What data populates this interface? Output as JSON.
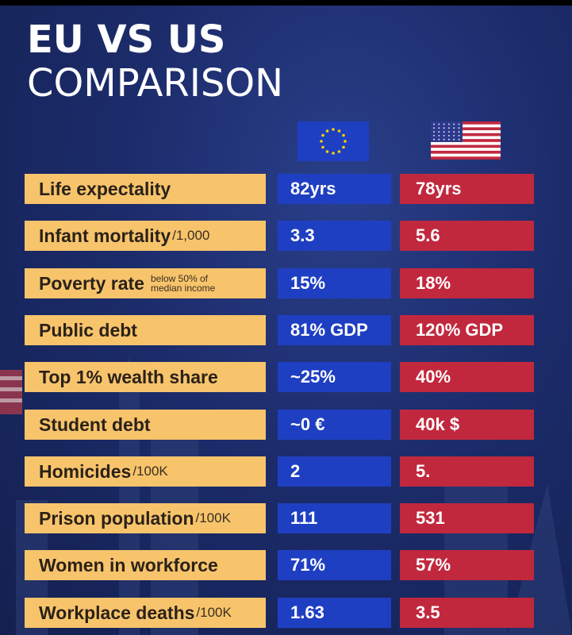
{
  "title": {
    "line1": "EU VS US",
    "line2": "COMPARISON"
  },
  "columns": {
    "eu_flag": "eu-flag-icon",
    "us_flag": "us-flag-icon"
  },
  "colors": {
    "label_bg": "#f7c46c",
    "eu": "#1f3fc2",
    "us": "#c1283e",
    "background": "#1c2c6b"
  },
  "rows": [
    {
      "label": "Life expectality",
      "unit": "",
      "eu": "82yrs",
      "us": "78yrs"
    },
    {
      "label": "Infant mortality",
      "unit": "/1,000",
      "eu": "3.3",
      "us": "5.6"
    },
    {
      "label": "Poverty rate",
      "unit": "below 50% of median income",
      "eu": "15%",
      "us": "18%"
    },
    {
      "label": "Public debt",
      "unit": "",
      "eu": "81% GDP",
      "us": "120% GDP"
    },
    {
      "label": "Top 1% wealth share",
      "unit": "",
      "eu": "~25%",
      "us": "40%"
    },
    {
      "label": "Student debt",
      "unit": "",
      "eu": "~0 €",
      "us": "40k $"
    },
    {
      "label": "Homicides",
      "unit": "/100K",
      "eu": "2",
      "us": "5."
    },
    {
      "label": "Prison population",
      "unit": "/100K",
      "eu": "111",
      "us": "531"
    },
    {
      "label": "Women in workforce",
      "unit": "",
      "eu": "71%",
      "us": "57%"
    },
    {
      "label": "Workplace deaths",
      "unit": "/100K",
      "eu": "1.63",
      "us": "3.5"
    }
  ]
}
